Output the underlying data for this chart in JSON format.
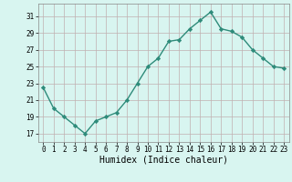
{
  "x": [
    0,
    1,
    2,
    3,
    4,
    5,
    6,
    7,
    8,
    9,
    10,
    11,
    12,
    13,
    14,
    15,
    16,
    17,
    18,
    19,
    20,
    21,
    22,
    23
  ],
  "y": [
    22.5,
    20.0,
    19.0,
    18.0,
    17.0,
    18.5,
    19.0,
    19.5,
    21.0,
    23.0,
    25.0,
    26.0,
    28.0,
    28.2,
    29.5,
    30.5,
    31.5,
    29.5,
    29.2,
    28.5,
    27.0,
    26.0,
    25.0,
    24.8
  ],
  "line_color": "#2e8b7a",
  "marker": "D",
  "markersize": 2.2,
  "linewidth": 1.0,
  "bg_color": "#d8f5f0",
  "grid_color": "#c0b0b0",
  "xlabel": "Humidex (Indice chaleur)",
  "xlabel_fontsize": 7,
  "yticks": [
    17,
    19,
    21,
    23,
    25,
    27,
    29,
    31
  ],
  "xtick_labels": [
    "0",
    "1",
    "2",
    "3",
    "4",
    "5",
    "6",
    "7",
    "8",
    "9",
    "10",
    "11",
    "12",
    "13",
    "14",
    "15",
    "16",
    "17",
    "18",
    "19",
    "20",
    "21",
    "22",
    "23"
  ],
  "ylim": [
    16.0,
    32.5
  ],
  "xlim": [
    -0.5,
    23.5
  ],
  "tick_fontsize": 5.5,
  "title_color": "#2e6b5a"
}
